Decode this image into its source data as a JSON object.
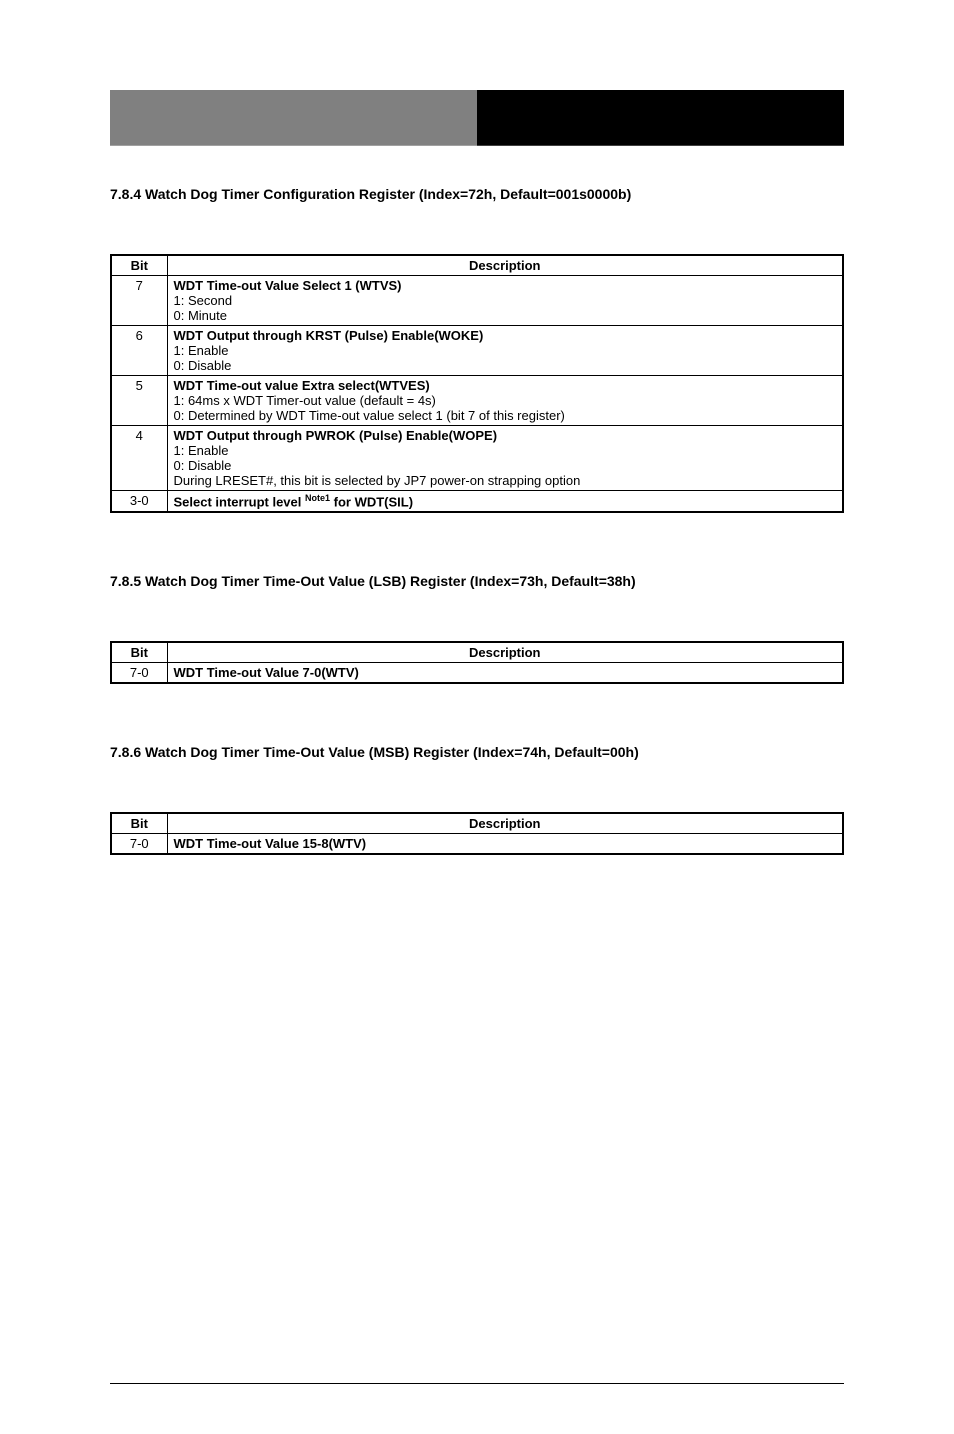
{
  "header": {
    "left_text": "",
    "right_text": ""
  },
  "registers": [
    {
      "title": "7.8.4 Watch Dog Timer Configuration Register (Index=72h, Default=001s0000b)",
      "meta": "",
      "columns": [
        "Bit",
        "Description"
      ],
      "rows": [
        {
          "bit": "7",
          "lines": [
            {
              "text": "WDT Time-out Value Select 1 (WTVS)",
              "bold": true
            },
            {
              "text": "1: Second",
              "bold": false
            },
            {
              "text": "0: Minute",
              "bold": false
            }
          ]
        },
        {
          "bit": "6",
          "lines": [
            {
              "text": "WDT Output through KRST (Pulse) Enable(WOKE)",
              "bold": true
            },
            {
              "text": "1: Enable",
              "bold": false
            },
            {
              "text": "0: Disable",
              "bold": false
            }
          ]
        },
        {
          "bit": "5",
          "lines": [
            {
              "text": "WDT Time-out value Extra select(WTVES)",
              "bold": true
            },
            {
              "text": "1: 64ms x WDT Timer-out value (default = 4s)",
              "bold": false
            },
            {
              "text": "0: Determined by WDT Time-out value select 1 (bit 7 of this register)",
              "bold": false
            }
          ]
        },
        {
          "bit": "4",
          "lines": [
            {
              "text": "WDT Output through PWROK (Pulse) Enable(WOPE)",
              "bold": true
            },
            {
              "text": "1: Enable",
              "bold": false
            },
            {
              "text": "0: Disable",
              "bold": false
            },
            {
              "text": "During LRESET#, this bit is selected by JP7 power-on strapping option",
              "bold": false
            }
          ]
        },
        {
          "bit": "3-0",
          "lines": [
            {
              "text": "Select interrupt level <sup>Note1</sup> for WDT(SIL)",
              "bold": true
            }
          ]
        }
      ]
    },
    {
      "title": "7.8.5 Watch Dog Timer Time-Out Value (LSB) Register (Index=73h, Default=38h)",
      "meta": "",
      "columns": [
        "Bit",
        "Description"
      ],
      "rows": [
        {
          "bit": "7-0",
          "lines": [
            {
              "text": "WDT Time-out Value 7-0(WTV)",
              "bold": true
            }
          ]
        }
      ]
    },
    {
      "title": "7.8.6 Watch Dog Timer Time-Out Value (MSB) Register (Index=74h, Default=00h)",
      "meta": "",
      "columns": [
        "Bit",
        "Description"
      ],
      "rows": [
        {
          "bit": "7-0",
          "lines": [
            {
              "text": "WDT Time-out Value 15-8(WTV)",
              "bold": true
            }
          ]
        }
      ]
    }
  ],
  "footer": {
    "left": "",
    "page": ""
  }
}
